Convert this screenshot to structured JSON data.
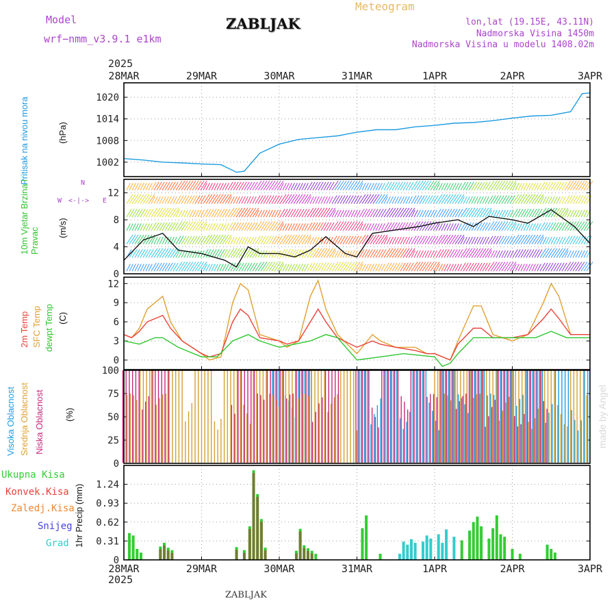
{
  "header": {
    "model_label": "Model",
    "model_name": "wrf−nmm_v3.9.1  e1km",
    "station": "ZABLJAK",
    "product": "Meteogram",
    "coords": "lon,lat (19.15E, 43.11N)",
    "elevation": "Nadmorska Visina 1450m",
    "model_elevation": "Nadmorska Visina u modelu 1408.02m",
    "year_top": "2025",
    "year_bottom": "2025",
    "footer_station": "ZABLJAK",
    "credit": "made by Angel"
  },
  "colors": {
    "pressure": "#1e9be0",
    "t2m": "#e8433a",
    "sfc_temp": "#e0a030",
    "dewpoint": "#2ec52e",
    "high_cloud": "#1e9be0",
    "mid_cloud": "#d4a030",
    "low_cloud": "#c8287a",
    "total_precip": "#33cc33",
    "conv_precip": "#e8433a",
    "frozen_precip": "#ee8833",
    "snow": "#4444dd",
    "graupel": "#33cccc",
    "purple_text": "#aa44cc"
  },
  "chart_data": [
    {
      "type": "line",
      "title": "",
      "ylabel": "Pritisak na nivou mora",
      "unit": "(hPa)",
      "x_ticks": [
        "28MAR",
        "29MAR",
        "30MAR",
        "31MAR",
        "1APR",
        "2APR",
        "3APR"
      ],
      "ylim": [
        998,
        1024
      ],
      "yticks": [
        1002,
        1008,
        1014,
        1020
      ],
      "grid": true,
      "series": [
        {
          "key": "pressure",
          "x_days": [
            0,
            0.25,
            0.5,
            0.75,
            1.0,
            1.25,
            1.45,
            1.55,
            1.75,
            2.0,
            2.25,
            2.5,
            2.75,
            3.0,
            3.25,
            3.5,
            3.75,
            4.0,
            4.25,
            4.5,
            4.75,
            5.0,
            5.25,
            5.5,
            5.75,
            5.9,
            6.0
          ],
          "values": [
            1003,
            1002.6,
            1002,
            1001.8,
            1001.5,
            1001.3,
            999.2,
            999.5,
            1004.5,
            1007,
            1008.3,
            1008.8,
            1009.3,
            1010.3,
            1011,
            1011,
            1011.8,
            1012.2,
            1012.8,
            1013,
            1013.5,
            1014.2,
            1014.8,
            1015,
            1016,
            1021,
            1021.2
          ]
        }
      ]
    },
    {
      "type": "line",
      "title": "",
      "ylabel": "10m Vjetar Brzina i Pravac",
      "unit": "(m/s)",
      "compass": [
        "N",
        "W",
        "E"
      ],
      "x_ticks": [
        "28MAR",
        "29MAR",
        "30MAR",
        "31MAR",
        "1APR",
        "2APR",
        "3APR"
      ],
      "ylim": [
        0,
        14
      ],
      "yticks": [
        0,
        4,
        8,
        12
      ],
      "grid": true,
      "series": [
        {
          "key": "wind_speed",
          "x_days": [
            0,
            0.25,
            0.5,
            0.7,
            1.0,
            1.3,
            1.45,
            1.6,
            1.75,
            2.0,
            2.2,
            2.4,
            2.6,
            2.85,
            3.0,
            3.2,
            3.5,
            3.8,
            4.0,
            4.3,
            4.5,
            4.7,
            5.0,
            5.2,
            5.5,
            5.8,
            6.0
          ],
          "values": [
            2,
            5,
            6,
            3.5,
            3,
            2,
            1,
            4,
            3,
            3,
            2.5,
            3.5,
            5.5,
            3,
            2.5,
            6,
            6.5,
            7,
            7.5,
            8,
            7,
            8.5,
            8,
            7.5,
            9.5,
            7,
            4.5
          ]
        }
      ]
    },
    {
      "type": "line",
      "title": "",
      "ylabel": "2m Temp / SFC Temp / dewpt Temp",
      "series_labels": [
        "2m Temp",
        "SFC Temp",
        "dewpt Temp"
      ],
      "unit": "(C)",
      "x_ticks": [
        "28MAR",
        "29MAR",
        "30MAR",
        "31MAR",
        "1APR",
        "2APR",
        "3APR"
      ],
      "ylim": [
        -1.5,
        13
      ],
      "yticks": [
        0,
        3,
        6,
        9,
        12
      ],
      "grid": true,
      "series": [
        {
          "key": "sfc_temp",
          "x_days": [
            0,
            0.1,
            0.2,
            0.3,
            0.5,
            0.6,
            0.75,
            1.0,
            1.1,
            1.25,
            1.4,
            1.5,
            1.6,
            1.75,
            2.0,
            2.1,
            2.25,
            2.4,
            2.5,
            2.6,
            2.75,
            3.0,
            3.2,
            3.3,
            3.5,
            3.75,
            3.9,
            4.0,
            4.2,
            4.3,
            4.5,
            4.6,
            4.75,
            5.0,
            5.2,
            5.4,
            5.5,
            5.6,
            5.75,
            6.0
          ],
          "values": [
            4,
            3.5,
            5,
            8,
            10,
            6,
            3,
            1,
            0,
            0.5,
            9,
            12,
            11,
            4,
            3,
            2,
            3,
            10,
            12.5,
            8,
            4,
            1,
            4,
            3,
            2,
            2,
            1,
            1,
            0,
            3,
            8.5,
            8.5,
            4,
            3,
            4,
            9,
            12,
            10,
            4,
            4
          ]
        },
        {
          "key": "t2m",
          "x_days": [
            0,
            0.1,
            0.2,
            0.3,
            0.5,
            0.6,
            0.75,
            1.0,
            1.1,
            1.25,
            1.4,
            1.5,
            1.6,
            1.75,
            2.0,
            2.1,
            2.25,
            2.4,
            2.5,
            2.6,
            2.75,
            3.0,
            3.2,
            3.3,
            3.5,
            3.75,
            3.9,
            4.0,
            4.2,
            4.3,
            4.5,
            4.6,
            4.75,
            5.0,
            5.2,
            5.4,
            5.5,
            5.6,
            5.75,
            6.0
          ],
          "values": [
            4,
            3.5,
            4.5,
            6,
            7,
            5,
            3,
            1,
            0.5,
            1,
            6,
            8,
            7,
            3.5,
            3,
            2.5,
            3,
            6,
            8,
            6,
            3.5,
            2,
            3,
            2.5,
            2,
            1.5,
            1,
            1,
            0,
            2.5,
            5,
            5,
            3.5,
            3.5,
            4,
            6.5,
            8,
            6.5,
            4,
            4
          ]
        },
        {
          "key": "dewpoint",
          "x_days": [
            0,
            0.2,
            0.4,
            0.5,
            0.7,
            1.0,
            1.2,
            1.4,
            1.6,
            1.75,
            2.0,
            2.2,
            2.4,
            2.6,
            2.75,
            3.0,
            3.3,
            3.6,
            4.0,
            4.1,
            4.2,
            4.3,
            4.5,
            4.7,
            5.0,
            5.3,
            5.5,
            5.7,
            6.0
          ],
          "values": [
            3,
            2.5,
            3.5,
            3.5,
            2,
            0.5,
            0.5,
            3,
            4,
            3,
            2,
            2.5,
            3,
            4,
            3.5,
            0,
            0.5,
            1,
            0.5,
            -1,
            -0.5,
            1,
            3.5,
            3.5,
            3.5,
            3.5,
            4.5,
            3.5,
            3.5
          ]
        }
      ]
    },
    {
      "type": "bar",
      "title": "",
      "ylabel": "Visoka Oblacnost / Srednja Oblacnost / Niska Oblacnost",
      "series_labels": [
        "Visoka Oblacnost",
        "Srednja Oblacnost",
        "Niska Oblacnost"
      ],
      "unit": "(%)",
      "x_ticks": [
        "28MAR",
        "29MAR",
        "30MAR",
        "31MAR",
        "1APR",
        "2APR",
        "3APR"
      ],
      "ylim": [
        0,
        100
      ],
      "yticks": [
        0,
        25,
        50,
        75,
        100
      ],
      "grid": false,
      "series": [
        {
          "key": "high_cloud",
          "note": "dense 100% after 31MAR",
          "active_ranges": [
            [
              1.9,
              2.4
            ],
            [
              3.0,
              6.0
            ]
          ]
        },
        {
          "key": "mid_cloud",
          "active_ranges": [
            [
              0,
              3.0
            ],
            [
              4.0,
              6.0
            ]
          ]
        },
        {
          "key": "low_cloud",
          "active_ranges": [
            [
              0,
              0.6
            ],
            [
              1.4,
              2.8
            ],
            [
              3.0,
              5.5
            ]
          ]
        }
      ]
    },
    {
      "type": "bar",
      "title": "",
      "ylabel": "1hr Precip",
      "unit": "(mm)",
      "series_labels": [
        "Ukupna Kisa",
        "Konvek.Kisa",
        "Zaledj.Kisa",
        "Snijeg",
        "Grad"
      ],
      "x_ticks": [
        "28MAR",
        "29MAR",
        "30MAR",
        "31MAR",
        "1APR",
        "2APR",
        "3APR"
      ],
      "ylim": [
        0,
        1.55
      ],
      "yticks": [
        0,
        0.31,
        0.62,
        0.93,
        1.24
      ],
      "grid": true,
      "events": [
        {
          "x_day": 0.07,
          "value": 0.44
        },
        {
          "x_day": 0.12,
          "value": 0.4
        },
        {
          "x_day": 0.17,
          "value": 0.18
        },
        {
          "x_day": 0.22,
          "value": 0.12
        },
        {
          "x_day": 0.47,
          "value": 0.22
        },
        {
          "x_day": 0.52,
          "value": 0.28
        },
        {
          "x_day": 0.57,
          "value": 0.2
        },
        {
          "x_day": 0.62,
          "value": 0.16
        },
        {
          "x_day": 1.45,
          "value": 0.21
        },
        {
          "x_day": 1.55,
          "value": 0.16
        },
        {
          "x_day": 1.62,
          "value": 0.55
        },
        {
          "x_day": 1.67,
          "value": 1.47
        },
        {
          "x_day": 1.72,
          "value": 1.08
        },
        {
          "x_day": 1.77,
          "value": 0.67
        },
        {
          "x_day": 1.82,
          "value": 0.2
        },
        {
          "x_day": 2.22,
          "value": 0.15
        },
        {
          "x_day": 2.27,
          "value": 0.51
        },
        {
          "x_day": 2.32,
          "value": 0.24
        },
        {
          "x_day": 2.37,
          "value": 0.19
        },
        {
          "x_day": 2.42,
          "value": 0.15
        },
        {
          "x_day": 2.47,
          "value": 0.1
        },
        {
          "x_day": 3.07,
          "value": 0.52
        },
        {
          "x_day": 3.12,
          "value": 0.73
        },
        {
          "x_day": 3.3,
          "value": 0.1
        },
        {
          "x_day": 3.55,
          "value": 0.1
        },
        {
          "x_day": 3.6,
          "value": 0.3
        },
        {
          "x_day": 3.65,
          "value": 0.25
        },
        {
          "x_day": 3.7,
          "value": 0.34
        },
        {
          "x_day": 3.75,
          "value": 0.28
        },
        {
          "x_day": 3.85,
          "value": 0.3
        },
        {
          "x_day": 3.9,
          "value": 0.4
        },
        {
          "x_day": 3.95,
          "value": 0.35
        },
        {
          "x_day": 4.05,
          "value": 0.42
        },
        {
          "x_day": 4.1,
          "value": 0.28
        },
        {
          "x_day": 4.15,
          "value": 0.5
        },
        {
          "x_day": 4.25,
          "value": 0.38
        },
        {
          "x_day": 4.35,
          "value": 0.32
        },
        {
          "x_day": 4.45,
          "value": 0.48
        },
        {
          "x_day": 4.5,
          "value": 0.62
        },
        {
          "x_day": 4.55,
          "value": 0.71
        },
        {
          "x_day": 4.6,
          "value": 0.55
        },
        {
          "x_day": 4.7,
          "value": 0.35
        },
        {
          "x_day": 4.75,
          "value": 0.52
        },
        {
          "x_day": 4.8,
          "value": 0.73
        },
        {
          "x_day": 4.85,
          "value": 0.42
        },
        {
          "x_day": 4.9,
          "value": 0.38
        },
        {
          "x_day": 5.0,
          "value": 0.18
        },
        {
          "x_day": 5.1,
          "value": 0.1
        },
        {
          "x_day": 5.45,
          "value": 0.25
        },
        {
          "x_day": 5.5,
          "value": 0.18
        },
        {
          "x_day": 5.55,
          "value": 0.12
        }
      ]
    }
  ]
}
